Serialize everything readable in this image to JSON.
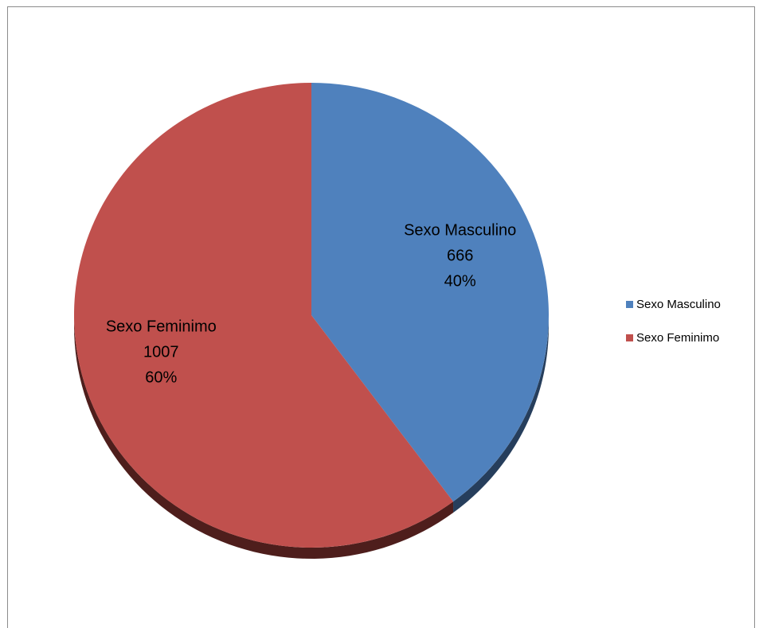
{
  "chart_data": {
    "type": "pie",
    "title": "",
    "series": [
      {
        "name": "Sexo Masculino",
        "value": 666,
        "percent": "40%",
        "color": "#4F81BD",
        "side_color": "#263E5C"
      },
      {
        "name": "Sexo Feminimo",
        "value": 1007,
        "percent": "60%",
        "color": "#C0504D",
        "side_color": "#4E1E1C"
      }
    ],
    "legend": {
      "position": "right",
      "entries": [
        "Sexo Masculino",
        "Sexo Feminimo"
      ]
    },
    "start_angle": "12 o'clock",
    "direction": "clockwise",
    "style": "3d-tilted"
  }
}
